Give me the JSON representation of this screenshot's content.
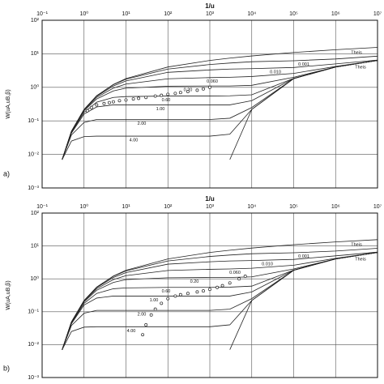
{
  "chart_data": [
    {
      "type": "line",
      "panel_label": "a)",
      "x_label": "1/u",
      "y_label": "W(uA,uB,β)",
      "xscale": "log",
      "yscale": "log",
      "grid": true,
      "color": "#222",
      "xlim": [
        0.1,
        10000000
      ],
      "ylim": [
        0.001,
        100
      ],
      "xticks": [
        {
          "value": 0.1,
          "label": "10⁻¹"
        },
        {
          "value": 1,
          "label": "10⁰"
        },
        {
          "value": 10,
          "label": "10¹"
        },
        {
          "value": 100,
          "label": "10²"
        },
        {
          "value": 1000,
          "label": "10³"
        },
        {
          "value": 10000,
          "label": "10⁴"
        },
        {
          "value": 100000,
          "label": "10⁵"
        },
        {
          "value": 1000000,
          "label": "10⁶"
        },
        {
          "value": 10000000,
          "label": "10⁷"
        }
      ],
      "yticks": [
        {
          "value": 100,
          "label": "10²"
        },
        {
          "value": 10,
          "label": "10¹"
        },
        {
          "value": 1,
          "label": "10⁰"
        },
        {
          "value": 0.1,
          "label": "10⁻¹"
        },
        {
          "value": 0.01,
          "label": "10⁻²"
        },
        {
          "value": 0.001,
          "label": "10⁻³"
        }
      ],
      "x": [
        0.3,
        0.5,
        1,
        2,
        5,
        10,
        100,
        1000,
        3000,
        10000,
        100000,
        1000000,
        10000000
      ],
      "series": [
        {
          "name": "Theis",
          "values": [
            0.007,
            0.049,
            0.219,
            0.56,
            1.22,
            1.82,
            4.04,
            6.33,
            7.43,
            8.63,
            10.94,
            13.24,
            15.54
          ]
        },
        {
          "name": "Theis",
          "values": [
            null,
            null,
            null,
            null,
            null,
            null,
            null,
            null,
            0.007,
            0.219,
            1.82,
            4.04,
            6.33
          ]
        },
        {
          "name": "0.001",
          "values": [
            0.007,
            0.049,
            0.219,
            0.56,
            1.2,
            1.75,
            3.5,
            4.8,
            5.3,
            5.8,
            6.2,
            7.0,
            8.5
          ]
        },
        {
          "name": "0.010",
          "values": [
            0.007,
            0.049,
            0.215,
            0.54,
            1.1,
            1.55,
            2.8,
            3.3,
            3.5,
            3.6,
            3.9,
            5.0,
            6.5
          ]
        },
        {
          "name": "0.060",
          "values": [
            0.007,
            0.048,
            0.21,
            0.5,
            0.95,
            1.25,
            1.8,
            1.95,
            2.0,
            2.1,
            2.6,
            4.2,
            6.35
          ]
        },
        {
          "name": "0.20",
          "values": [
            0.007,
            0.047,
            0.2,
            0.45,
            0.78,
            0.95,
            1.08,
            1.1,
            1.1,
            1.15,
            2.0,
            4.05,
            6.33
          ]
        },
        {
          "name": "0.60",
          "values": [
            0.007,
            0.045,
            0.18,
            0.36,
            0.5,
            0.53,
            0.55,
            0.55,
            0.56,
            0.6,
            1.85,
            4.04,
            6.33
          ]
        },
        {
          "name": "1.00",
          "values": [
            0.007,
            0.043,
            0.16,
            0.26,
            0.3,
            0.3,
            0.3,
            0.3,
            0.3,
            0.4,
            1.83,
            4.04,
            6.33
          ]
        },
        {
          "name": "2.00",
          "values": [
            0.007,
            0.038,
            0.09,
            0.11,
            0.11,
            0.11,
            0.11,
            0.11,
            0.12,
            0.25,
            1.82,
            4.04,
            6.33
          ]
        },
        {
          "name": "4.00",
          "values": [
            0.007,
            0.025,
            0.034,
            0.035,
            0.035,
            0.035,
            0.035,
            0.035,
            0.04,
            0.22,
            1.82,
            4.04,
            6.33
          ]
        }
      ],
      "observed": {
        "x": [
          1.2,
          1.5,
          2,
          3,
          4,
          5,
          7,
          10,
          15,
          20,
          30,
          50,
          70,
          100,
          150,
          200,
          300,
          500,
          700,
          1000
        ],
        "values": [
          0.2,
          0.25,
          0.3,
          0.33,
          0.35,
          0.37,
          0.4,
          0.42,
          0.45,
          0.47,
          0.5,
          0.55,
          0.58,
          0.62,
          0.66,
          0.7,
          0.75,
          0.82,
          0.9,
          1.0
        ]
      }
    },
    {
      "type": "line",
      "panel_label": "b)",
      "x_label": "1/u",
      "y_label": "W(uA,uB,β)",
      "xscale": "log",
      "yscale": "log",
      "grid": true,
      "color": "#222",
      "xlim": [
        0.1,
        10000000
      ],
      "ylim": [
        0.001,
        100
      ],
      "xticks": [
        {
          "value": 0.1,
          "label": "10⁻¹"
        },
        {
          "value": 1,
          "label": "10⁰"
        },
        {
          "value": 10,
          "label": "10¹"
        },
        {
          "value": 100,
          "label": "10²"
        },
        {
          "value": 1000,
          "label": "10³"
        },
        {
          "value": 10000,
          "label": "10⁴"
        },
        {
          "value": 100000,
          "label": "10⁵"
        },
        {
          "value": 1000000,
          "label": "10⁶"
        },
        {
          "value": 10000000,
          "label": "10⁷"
        }
      ],
      "yticks": [
        {
          "value": 100,
          "label": "10²"
        },
        {
          "value": 10,
          "label": "10¹"
        },
        {
          "value": 1,
          "label": "10⁰"
        },
        {
          "value": 0.1,
          "label": "10⁻¹"
        },
        {
          "value": 0.01,
          "label": "10⁻²"
        },
        {
          "value": 0.001,
          "label": "10⁻³"
        }
      ],
      "x": [
        0.3,
        0.5,
        1,
        2,
        5,
        10,
        100,
        1000,
        3000,
        10000,
        100000,
        1000000,
        10000000
      ],
      "series": [
        {
          "name": "Theis",
          "values": [
            0.007,
            0.049,
            0.219,
            0.56,
            1.22,
            1.82,
            4.04,
            6.33,
            7.43,
            8.63,
            10.94,
            13.24,
            15.54
          ]
        },
        {
          "name": "Theis",
          "values": [
            null,
            null,
            null,
            null,
            null,
            null,
            null,
            null,
            0.007,
            0.219,
            1.82,
            4.04,
            6.33
          ]
        },
        {
          "name": "0.001",
          "values": [
            0.007,
            0.049,
            0.219,
            0.56,
            1.2,
            1.75,
            3.5,
            4.8,
            5.3,
            5.8,
            6.2,
            7.0,
            8.5
          ]
        },
        {
          "name": "0.010",
          "values": [
            0.007,
            0.049,
            0.215,
            0.54,
            1.1,
            1.55,
            2.8,
            3.3,
            3.5,
            3.6,
            3.9,
            5.0,
            6.5
          ]
        },
        {
          "name": "0.060",
          "values": [
            0.007,
            0.048,
            0.21,
            0.5,
            0.95,
            1.25,
            1.8,
            1.95,
            2.0,
            2.1,
            2.6,
            4.2,
            6.35
          ]
        },
        {
          "name": "0.20",
          "values": [
            0.007,
            0.047,
            0.2,
            0.45,
            0.78,
            0.95,
            1.08,
            1.1,
            1.1,
            1.15,
            2.0,
            4.05,
            6.33
          ]
        },
        {
          "name": "0.60",
          "values": [
            0.007,
            0.045,
            0.18,
            0.36,
            0.5,
            0.53,
            0.55,
            0.55,
            0.56,
            0.6,
            1.85,
            4.04,
            6.33
          ]
        },
        {
          "name": "1.00",
          "values": [
            0.007,
            0.043,
            0.16,
            0.26,
            0.3,
            0.3,
            0.3,
            0.3,
            0.3,
            0.4,
            1.83,
            4.04,
            6.33
          ]
        },
        {
          "name": "2.00",
          "values": [
            0.007,
            0.038,
            0.09,
            0.11,
            0.11,
            0.11,
            0.11,
            0.11,
            0.12,
            0.25,
            1.82,
            4.04,
            6.33
          ]
        },
        {
          "name": "4.00",
          "values": [
            0.007,
            0.025,
            0.034,
            0.035,
            0.035,
            0.035,
            0.035,
            0.035,
            0.04,
            0.22,
            1.82,
            4.04,
            6.33
          ]
        }
      ],
      "observed": {
        "x": [
          25,
          30,
          40,
          50,
          70,
          100,
          150,
          200,
          300,
          500,
          700,
          1000,
          1500,
          2000,
          3000,
          5000,
          7000
        ],
        "values": [
          0.02,
          0.04,
          0.08,
          0.12,
          0.18,
          0.25,
          0.3,
          0.33,
          0.36,
          0.4,
          0.43,
          0.48,
          0.55,
          0.62,
          0.75,
          1.0,
          1.2
        ]
      }
    }
  ]
}
